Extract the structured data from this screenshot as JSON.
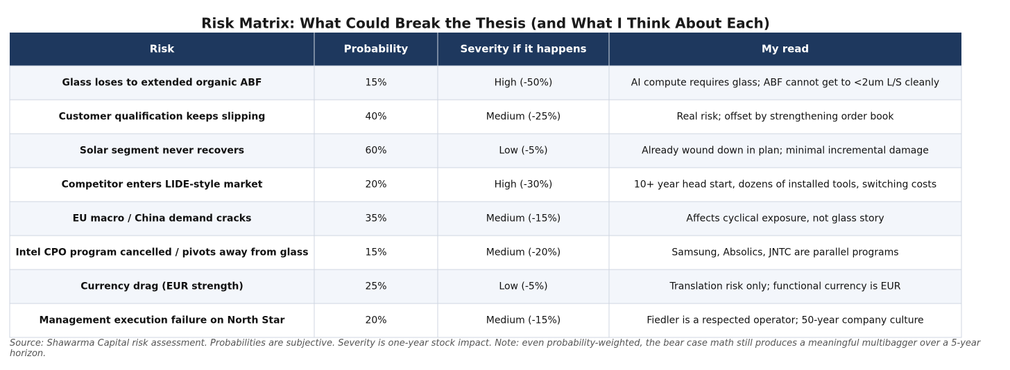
{
  "header": {
    "title": "Risk Matrix: What Could Break the Thesis (and What I Think About Each)"
  },
  "table": {
    "columns": [
      "Risk",
      "Probability",
      "Severity if it happens",
      "My read"
    ],
    "rows": [
      [
        "Glass loses to extended organic ABF",
        "15%",
        "High (-50%)",
        "AI compute requires glass; ABF cannot get to <2um L/S cleanly"
      ],
      [
        "Customer qualification keeps slipping",
        "40%",
        "Medium (-25%)",
        "Real risk; offset by strengthening order book"
      ],
      [
        "Solar segment never recovers",
        "60%",
        "Low (-5%)",
        "Already wound down in plan; minimal incremental damage"
      ],
      [
        "Competitor enters LIDE-style market",
        "20%",
        "High (-30%)",
        "10+ year head start, dozens of installed tools, switching costs"
      ],
      [
        "EU macro / China demand cracks",
        "35%",
        "Medium (-15%)",
        "Affects cyclical exposure, not glass story"
      ],
      [
        "Intel CPO program cancelled / pivots away from glass",
        "15%",
        "Medium (-20%)",
        "Samsung, Absolics, JNTC are parallel programs"
      ],
      [
        "Currency drag (EUR strength)",
        "25%",
        "Low (-5%)",
        "Translation risk only; functional currency is EUR"
      ],
      [
        "Management execution failure on North Star",
        "20%",
        "Medium (-15%)",
        "Fiedler is a respected operator; 50-year company culture"
      ]
    ]
  },
  "footnote": "Source: Shawarma Capital risk assessment. Probabilities are subjective. Severity is one-year stock impact. Note: even probability-weighted, the bear case math still produces a meaningful multibagger over a 5-year horizon."
}
